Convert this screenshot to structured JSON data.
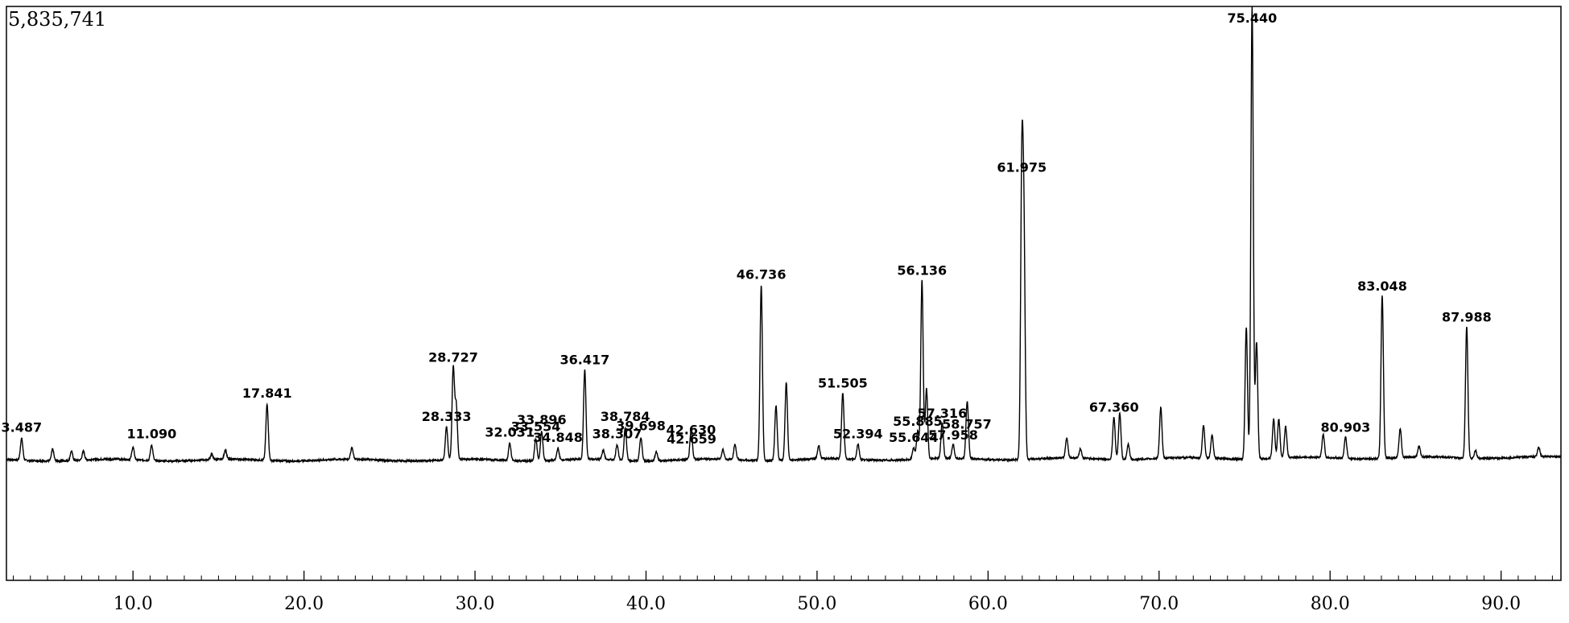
{
  "chart_data": {
    "type": "line",
    "max_intensity_label": "5,835,741",
    "xlim": [
      2.6,
      93.5
    ],
    "ylim": [
      0,
      5835741
    ],
    "x_ticks": [
      {
        "value": 10,
        "label": "10.0"
      },
      {
        "value": 20,
        "label": "20.0"
      },
      {
        "value": 30,
        "label": "30.0"
      },
      {
        "value": 40,
        "label": "40.0"
      },
      {
        "value": 50,
        "label": "50.0"
      },
      {
        "value": 60,
        "label": "60.0"
      },
      {
        "value": 70,
        "label": "70.0"
      },
      {
        "value": 80,
        "label": "80.0"
      },
      {
        "value": 90,
        "label": "90.0"
      }
    ],
    "peaks": [
      {
        "rt": 3.487,
        "label": "3.487",
        "height": 280000
      },
      {
        "rt": 11.09,
        "label": "11.090",
        "height": 200000
      },
      {
        "rt": 17.841,
        "label": "17.841",
        "height": 720000
      },
      {
        "rt": 28.333,
        "label": "28.333",
        "height": 420000
      },
      {
        "rt": 28.727,
        "label": "28.727",
        "height": 1180000
      },
      {
        "rt": 32.031,
        "label": "32.031",
        "height": 220000
      },
      {
        "rt": 33.554,
        "label": "33.554",
        "height": 290000
      },
      {
        "rt": 33.896,
        "label": "33.896",
        "height": 380000
      },
      {
        "rt": 34.848,
        "label": "34.848",
        "height": 150000
      },
      {
        "rt": 36.417,
        "label": "36.417",
        "height": 1150000
      },
      {
        "rt": 38.307,
        "label": "38.307",
        "height": 200000
      },
      {
        "rt": 38.784,
        "label": "38.784",
        "height": 420000
      },
      {
        "rt": 39.698,
        "label": "39.698",
        "height": 300000
      },
      {
        "rt": 42.63,
        "label": "42.630",
        "height": 250000
      },
      {
        "rt": 42.659,
        "label": "42.659",
        "height": 130000
      },
      {
        "rt": 46.736,
        "label": "46.736",
        "height": 2250000
      },
      {
        "rt": 51.505,
        "label": "51.505",
        "height": 850000
      },
      {
        "rt": 52.394,
        "label": "52.394",
        "height": 200000
      },
      {
        "rt": 55.644,
        "label": "55.644",
        "height": 150000
      },
      {
        "rt": 55.885,
        "label": "55.885",
        "height": 360000
      },
      {
        "rt": 56.136,
        "label": "56.136",
        "height": 2300000
      },
      {
        "rt": 57.316,
        "label": "57.316",
        "height": 460000
      },
      {
        "rt": 57.958,
        "label": "57.958",
        "height": 180000
      },
      {
        "rt": 58.757,
        "label": "58.757",
        "height": 320000
      },
      {
        "rt": 61.975,
        "label": "61.975",
        "height": 3630000
      },
      {
        "rt": 67.36,
        "label": "67.360",
        "height": 540000
      },
      {
        "rt": 75.44,
        "label": "75.440",
        "height": 5835741
      },
      {
        "rt": 80.903,
        "label": "80.903",
        "height": 280000
      },
      {
        "rt": 83.048,
        "label": "83.048",
        "height": 2100000
      },
      {
        "rt": 87.988,
        "label": "87.988",
        "height": 1700000
      }
    ],
    "minor_peaks": [
      {
        "rt": 5.3,
        "height": 150000
      },
      {
        "rt": 6.4,
        "height": 120000
      },
      {
        "rt": 7.1,
        "height": 110000
      },
      {
        "rt": 10.0,
        "height": 160000
      },
      {
        "rt": 14.6,
        "height": 70000
      },
      {
        "rt": 15.4,
        "height": 120000
      },
      {
        "rt": 22.8,
        "height": 150000
      },
      {
        "rt": 28.9,
        "height": 700000
      },
      {
        "rt": 37.5,
        "height": 120000
      },
      {
        "rt": 40.6,
        "height": 120000
      },
      {
        "rt": 44.5,
        "height": 120000
      },
      {
        "rt": 45.2,
        "height": 200000
      },
      {
        "rt": 47.6,
        "height": 700000
      },
      {
        "rt": 48.2,
        "height": 1000000
      },
      {
        "rt": 50.1,
        "height": 170000
      },
      {
        "rt": 56.4,
        "height": 900000
      },
      {
        "rt": 58.8,
        "height": 450000
      },
      {
        "rt": 62.1,
        "height": 2700000
      },
      {
        "rt": 64.6,
        "height": 260000
      },
      {
        "rt": 65.4,
        "height": 120000
      },
      {
        "rt": 67.7,
        "height": 600000
      },
      {
        "rt": 68.2,
        "height": 200000
      },
      {
        "rt": 70.1,
        "height": 650000
      },
      {
        "rt": 72.6,
        "height": 420000
      },
      {
        "rt": 73.1,
        "height": 300000
      },
      {
        "rt": 75.1,
        "height": 1700000
      },
      {
        "rt": 75.7,
        "height": 1500000
      },
      {
        "rt": 76.7,
        "height": 500000
      },
      {
        "rt": 77.0,
        "height": 500000
      },
      {
        "rt": 77.4,
        "height": 400000
      },
      {
        "rt": 79.6,
        "height": 300000
      },
      {
        "rt": 84.1,
        "height": 370000
      },
      {
        "rt": 85.2,
        "height": 140000
      },
      {
        "rt": 88.5,
        "height": 100000
      },
      {
        "rt": 92.2,
        "height": 120000
      }
    ]
  }
}
